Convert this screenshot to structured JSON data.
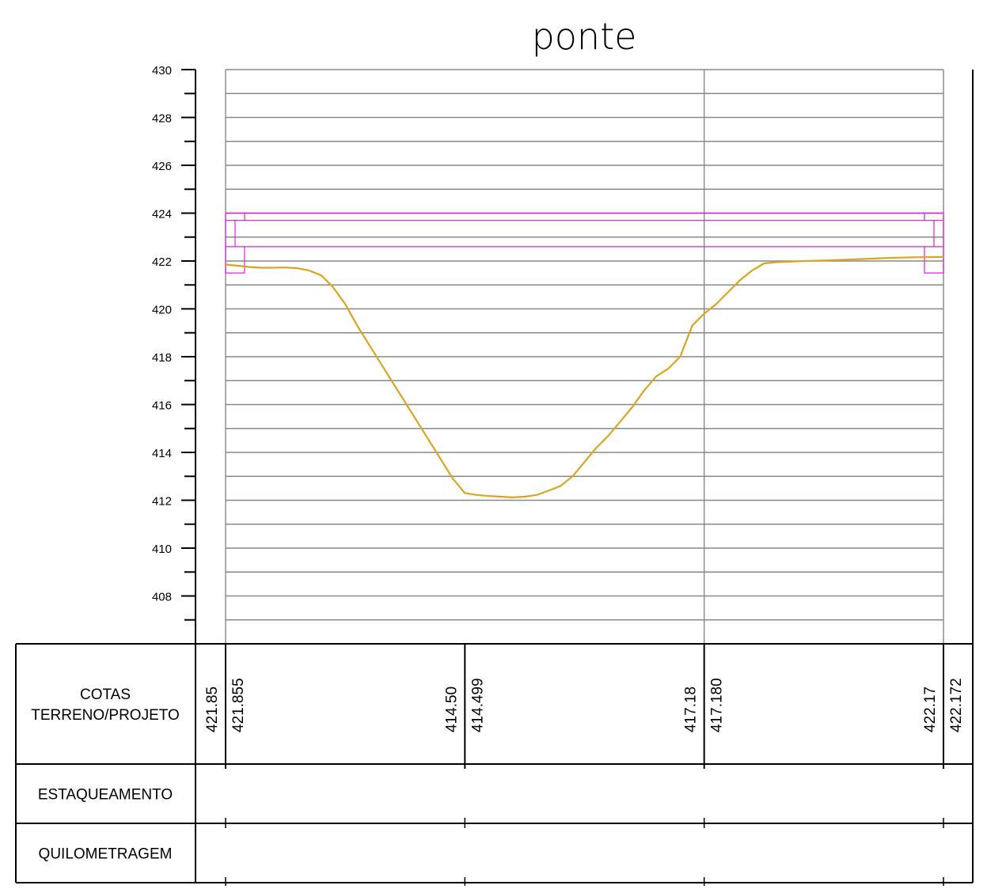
{
  "chart_data": {
    "type": "line",
    "title": "ponte",
    "xlabel": "",
    "ylabel": "",
    "ylim": [
      406,
      430
    ],
    "yticks": [
      408,
      410,
      412,
      414,
      416,
      418,
      420,
      422,
      424,
      426,
      428,
      430
    ],
    "grid": true,
    "series": [
      {
        "color": "#DAA520",
        "x": [
          0,
          0.25,
          0.5,
          0.75,
          1.0,
          1.25,
          1.5,
          1.75,
          2.0,
          2.25,
          2.5,
          2.75,
          3.0,
          3.25,
          3.5,
          3.75,
          4.0,
          4.25,
          4.5,
          4.75,
          5.0,
          5.25,
          5.5,
          5.75,
          6.0,
          6.25,
          6.5,
          6.75,
          7.0,
          7.25,
          7.5,
          7.75,
          8.0,
          8.25,
          8.5,
          8.75,
          9.0,
          9.25,
          9.5,
          9.75,
          10.0,
          10.25,
          10.5,
          10.75,
          11.0,
          11.25,
          11.5,
          11.75,
          12.0,
          12.25,
          12.5,
          12.75,
          13.0,
          13.25,
          13.5,
          13.75,
          14.0,
          14.25,
          14.5,
          14.75,
          15.0
        ],
        "y": [
          421.85,
          421.8,
          421.75,
          421.72,
          421.72,
          421.73,
          421.7,
          421.6,
          421.4,
          420.9,
          420.2,
          419.3,
          418.5,
          417.7,
          416.9,
          416.1,
          415.3,
          414.499,
          413.7,
          412.9,
          412.3,
          412.22,
          412.18,
          412.15,
          412.12,
          412.15,
          412.22,
          412.4,
          412.6,
          413.0,
          413.6,
          414.2,
          414.7,
          415.3,
          415.9,
          416.6,
          417.18,
          417.5,
          418.0,
          419.3,
          419.8,
          420.2,
          420.7,
          421.2,
          421.6,
          421.9,
          421.95,
          421.97,
          421.99,
          422.01,
          422.02,
          422.04,
          422.06,
          422.08,
          422.1,
          422.12,
          422.14,
          422.15,
          422.16,
          422.165,
          422.172
        ]
      }
    ],
    "bridge_deck": {
      "color": "#E020E0",
      "top": 424.0,
      "top_inner": 423.7,
      "bottom": 422.6,
      "abutment_bottom": 421.5
    },
    "stations": [
      0,
      5,
      10,
      15
    ],
    "table": {
      "rows": [
        {
          "label_lines": [
            "COTAS",
            "TERRENO/PROJETO"
          ]
        },
        {
          "label_lines": [
            "ESTAQUEAMENTO"
          ]
        },
        {
          "label_lines": [
            "QUILOMETRAGEM"
          ]
        }
      ],
      "cotas": [
        {
          "terreno": "421.85",
          "projeto": "421.855"
        },
        {
          "terreno": "414.50",
          "projeto": "414.499"
        },
        {
          "terreno": "417.18",
          "projeto": "417.180"
        },
        {
          "terreno": "422.17",
          "projeto": "422.172"
        }
      ]
    }
  }
}
